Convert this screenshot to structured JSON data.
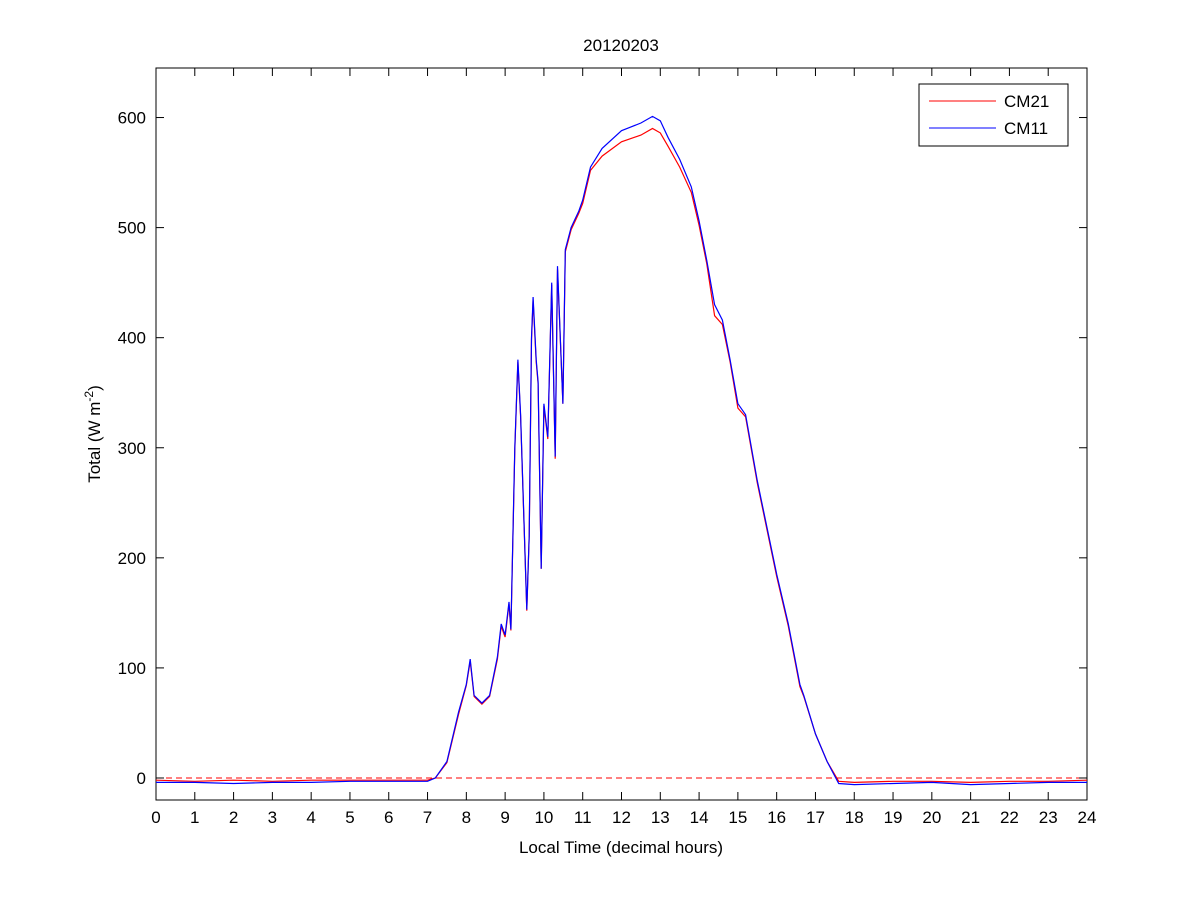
{
  "chart_data": {
    "type": "line",
    "title": "20120203",
    "xlabel": "Local Time (decimal hours)",
    "ylabel": "Total (W m-2)",
    "ylabel_parts": {
      "base": "Total (W m",
      "sup": "-2",
      "end": ")"
    },
    "xlim": [
      0,
      24
    ],
    "ylim": [
      -20,
      645
    ],
    "xticks": [
      0,
      1,
      2,
      3,
      4,
      5,
      6,
      7,
      8,
      9,
      10,
      11,
      12,
      13,
      14,
      15,
      16,
      17,
      18,
      19,
      20,
      21,
      22,
      23,
      24
    ],
    "yticks": [
      0,
      100,
      200,
      300,
      400,
      500,
      600
    ],
    "grid": false,
    "legend_position": "top-right",
    "reference_line": {
      "y": 0,
      "style": "dashed",
      "color": "#ff0000"
    },
    "series": [
      {
        "name": "CM21",
        "color": "#ff0000",
        "points": [
          [
            0,
            -2
          ],
          [
            1,
            -3
          ],
          [
            2,
            -2
          ],
          [
            3,
            -3
          ],
          [
            4,
            -2
          ],
          [
            5,
            -2
          ],
          [
            6,
            -2
          ],
          [
            7,
            -2
          ],
          [
            7.2,
            0
          ],
          [
            7.5,
            14
          ],
          [
            7.8,
            58
          ],
          [
            8.0,
            84
          ],
          [
            8.1,
            106
          ],
          [
            8.2,
            74
          ],
          [
            8.4,
            67
          ],
          [
            8.6,
            74
          ],
          [
            8.8,
            108
          ],
          [
            8.9,
            138
          ],
          [
            9.0,
            128
          ],
          [
            9.1,
            158
          ],
          [
            9.15,
            134
          ],
          [
            9.25,
            298
          ],
          [
            9.33,
            378
          ],
          [
            9.4,
            328
          ],
          [
            9.56,
            152
          ],
          [
            9.62,
            220
          ],
          [
            9.68,
            398
          ],
          [
            9.72,
            434
          ],
          [
            9.8,
            378
          ],
          [
            9.85,
            358
          ],
          [
            9.93,
            190
          ],
          [
            10.0,
            338
          ],
          [
            10.1,
            308
          ],
          [
            10.2,
            448
          ],
          [
            10.29,
            290
          ],
          [
            10.35,
            462
          ],
          [
            10.49,
            340
          ],
          [
            10.55,
            478
          ],
          [
            10.7,
            498
          ],
          [
            10.9,
            513
          ],
          [
            11.0,
            522
          ],
          [
            11.2,
            552
          ],
          [
            11.5,
            565
          ],
          [
            12.0,
            578
          ],
          [
            12.5,
            584
          ],
          [
            12.8,
            590
          ],
          [
            13.0,
            586
          ],
          [
            13.2,
            574
          ],
          [
            13.5,
            555
          ],
          [
            13.8,
            532
          ],
          [
            14.0,
            502
          ],
          [
            14.2,
            467
          ],
          [
            14.4,
            420
          ],
          [
            14.6,
            412
          ],
          [
            14.8,
            378
          ],
          [
            15.0,
            336
          ],
          [
            15.2,
            328
          ],
          [
            15.5,
            268
          ],
          [
            16.0,
            183
          ],
          [
            16.3,
            138
          ],
          [
            16.6,
            83
          ],
          [
            16.7,
            74
          ],
          [
            17.0,
            40
          ],
          [
            17.3,
            15
          ],
          [
            17.6,
            -3
          ],
          [
            18,
            -4
          ],
          [
            19,
            -3
          ],
          [
            20,
            -3
          ],
          [
            21,
            -4
          ],
          [
            22,
            -3
          ],
          [
            23,
            -3
          ],
          [
            24,
            -2
          ]
        ]
      },
      {
        "name": "CM11",
        "color": "#0000ff",
        "points": [
          [
            0,
            -4
          ],
          [
            1,
            -4
          ],
          [
            2,
            -5
          ],
          [
            3,
            -4
          ],
          [
            4,
            -4
          ],
          [
            5,
            -3
          ],
          [
            6,
            -3
          ],
          [
            7,
            -3
          ],
          [
            7.2,
            0
          ],
          [
            7.5,
            15
          ],
          [
            7.8,
            60
          ],
          [
            8.0,
            85
          ],
          [
            8.1,
            108
          ],
          [
            8.2,
            75
          ],
          [
            8.4,
            68
          ],
          [
            8.6,
            75
          ],
          [
            8.8,
            110
          ],
          [
            8.9,
            140
          ],
          [
            9.0,
            130
          ],
          [
            9.1,
            160
          ],
          [
            9.15,
            135
          ],
          [
            9.25,
            300
          ],
          [
            9.33,
            380
          ],
          [
            9.4,
            330
          ],
          [
            9.56,
            153
          ],
          [
            9.62,
            220
          ],
          [
            9.68,
            400
          ],
          [
            9.72,
            437
          ],
          [
            9.8,
            380
          ],
          [
            9.85,
            360
          ],
          [
            9.93,
            190
          ],
          [
            10.0,
            340
          ],
          [
            10.1,
            310
          ],
          [
            10.2,
            450
          ],
          [
            10.29,
            292
          ],
          [
            10.35,
            465
          ],
          [
            10.49,
            340
          ],
          [
            10.55,
            480
          ],
          [
            10.7,
            500
          ],
          [
            10.9,
            515
          ],
          [
            11.0,
            525
          ],
          [
            11.2,
            555
          ],
          [
            11.5,
            572
          ],
          [
            12.0,
            588
          ],
          [
            12.5,
            595
          ],
          [
            12.8,
            601
          ],
          [
            13.0,
            597
          ],
          [
            13.2,
            582
          ],
          [
            13.5,
            562
          ],
          [
            13.8,
            537
          ],
          [
            14.0,
            506
          ],
          [
            14.2,
            470
          ],
          [
            14.4,
            430
          ],
          [
            14.6,
            416
          ],
          [
            14.8,
            380
          ],
          [
            15.0,
            340
          ],
          [
            15.2,
            330
          ],
          [
            15.5,
            270
          ],
          [
            16.0,
            185
          ],
          [
            16.3,
            140
          ],
          [
            16.6,
            85
          ],
          [
            16.7,
            75
          ],
          [
            17.0,
            40
          ],
          [
            17.3,
            15
          ],
          [
            17.6,
            -5
          ],
          [
            18,
            -6
          ],
          [
            19,
            -5
          ],
          [
            20,
            -4
          ],
          [
            21,
            -6
          ],
          [
            22,
            -5
          ],
          [
            23,
            -4
          ],
          [
            24,
            -4
          ]
        ]
      }
    ]
  }
}
